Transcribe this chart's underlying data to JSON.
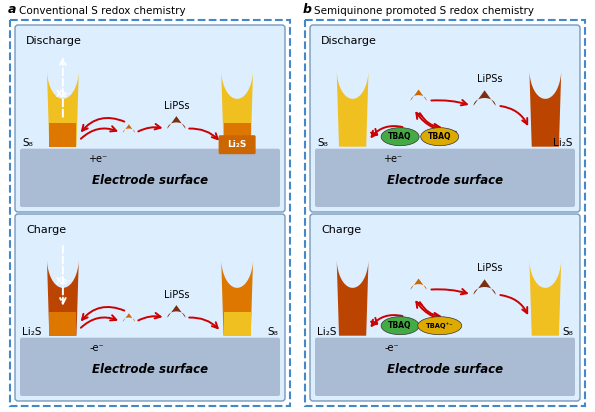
{
  "title_a_letter": "a",
  "title_a_text": "Conventional S redox chemistry",
  "title_b_letter": "b",
  "title_b_text": "Semiquinone promoted S redox chemistry",
  "outer_bg": "#ffffff",
  "dashed_border_color": "#4488cc",
  "panel_bg_light": "#ddeeff",
  "panel_bg_mid": "#ccddef",
  "electrode_surface_color": "#aabbd4",
  "yellow_electrode": "#f0c020",
  "yellow_electrode_dark": "#e8a800",
  "orange_electrode": "#dd7700",
  "dark_orange_electrode": "#bb4400",
  "lipss_drop_dark": "#7a3010",
  "lipss_drop_mid": "#cc6600",
  "arrow_color": "#cc0000",
  "green_tbaq": "#44aa44",
  "yellow_tbaq": "#ddaa00",
  "li2s_box_color": "#cc6600",
  "s8_text": "S₈",
  "li2s_text": "Li₂S",
  "lipss_text": "LiPSs",
  "electrode_surface_text": "Electrode surface",
  "discharge_text": "Discharge",
  "charge_text": "Charge",
  "plus_e_text": "+e⁻",
  "minus_e_text": "-e⁻",
  "tbaq_text": "TBAQ",
  "tbaq_plus_text": "TBAQ⁺⁻"
}
